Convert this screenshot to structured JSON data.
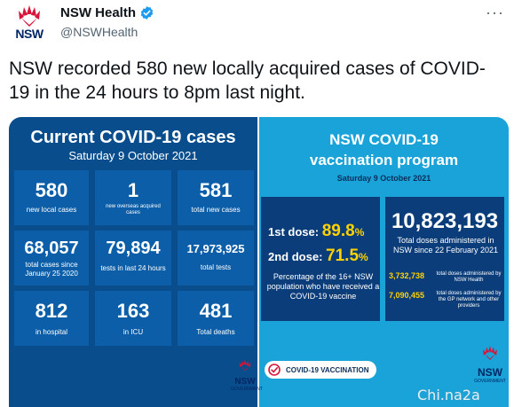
{
  "author": {
    "display_name": "NSW Health",
    "handle": "@NSWHealth",
    "avatar_wordmark": "NSW",
    "verified_icon": "verified-badge-icon",
    "more_icon": "more-options-icon",
    "more_glyph": "···"
  },
  "tweet": {
    "text": "NSW recorded 580 new locally acquired cases of COVID-19 in the 24 hours to 8pm last night."
  },
  "cases_panel": {
    "title": "Current COVID-19 cases",
    "date": "Saturday 9 October 2021",
    "tiles": [
      {
        "value": "580",
        "label": "new local cases"
      },
      {
        "value": "1",
        "label": "new overseas acquired cases"
      },
      {
        "value": "581",
        "label": "total new cases"
      },
      {
        "value": "68,057",
        "label": "total cases since January 25 2020"
      },
      {
        "value": "79,894",
        "label": "tests in last 24 hours"
      },
      {
        "value": "17,973,925",
        "label": "total tests"
      },
      {
        "value": "812",
        "label": "in hospital"
      },
      {
        "value": "163",
        "label": "in ICU"
      },
      {
        "value": "481",
        "label": "Total deaths"
      }
    ],
    "logo_word": "NSW",
    "logo_gov": "GOVERNMENT"
  },
  "vaccination_panel": {
    "title_line1": "NSW COVID-19",
    "title_line2": "vaccination program",
    "date": "Saturday 9 October 2021",
    "first_dose_label": "1st dose:",
    "first_dose_value": "89.8",
    "second_dose_label": "2nd dose:",
    "second_dose_value": "71.5",
    "percent_sign": "%",
    "dose_note": "Percentage of the 16+ NSW population who have received a COVID-19 vaccine",
    "total_doses": "10,823,193",
    "total_note": "Total doses administered in NSW since 22 February 2021",
    "nsw_health_doses": "3,732,738",
    "nsw_health_note": "total doses administered by NSW Health",
    "gp_doses": "7,090,455",
    "gp_note": "total doses administered by the GP network and other providers",
    "pill_label": "COVID-19 VACCINATION",
    "logo_word": "NSW",
    "logo_gov": "GOVERNMENT"
  },
  "watermark": "Chi.na2a",
  "colors": {
    "cases_bg": "#0a4d8c",
    "tile_bg": "#0c5ea8",
    "vax_bg": "#1aa3d8",
    "vax_box": "#0b3d7a",
    "accent_yellow": "#ffd200",
    "nsw_red": "#d7153a",
    "verified_blue": "#1d9bf0"
  }
}
